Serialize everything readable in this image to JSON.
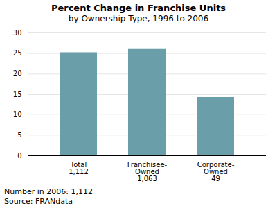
{
  "chart_data": {
    "type": "bar",
    "title": "Percent Change in Franchise Units",
    "subtitle": "by Ownership Type, 1996 to 2006",
    "categories": [
      "Total",
      "Franchisee-\nOwned",
      "Corporate-\nOwned"
    ],
    "values": [
      25.2,
      26.0,
      14.3
    ],
    "counts": [
      {
        "value": 1112,
        "label": "1,112"
      },
      {
        "value": 1063,
        "label": "1,063"
      },
      {
        "value": 49,
        "label": "49"
      }
    ],
    "color": "#6a9ea8",
    "ylim": [
      0,
      30
    ],
    "yticks": [
      0,
      5,
      10,
      15,
      20,
      25,
      30
    ],
    "grid": true,
    "annotations": [
      "Number in 2006:  1,112",
      "Source: FRANdata"
    ]
  }
}
